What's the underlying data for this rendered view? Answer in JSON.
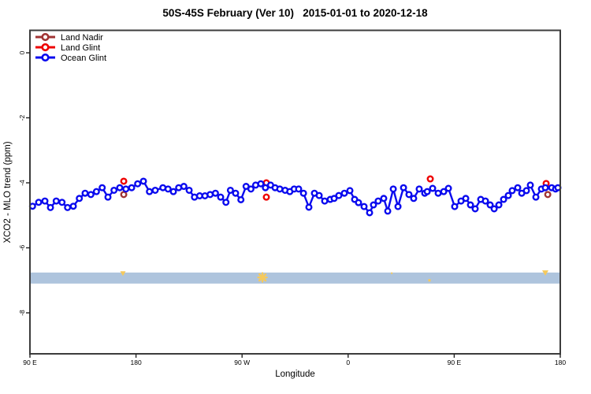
{
  "title": "50S-45S February (Ver 10)   2015-01-01 to 2020-12-18",
  "chart_data": {
    "type": "scatter",
    "title": "50S-45S February (Ver 10)   2015-01-01 to 2020-12-18",
    "xlabel": "Longitude",
    "ylabel": "XCO2 - MLO trend (ppm)",
    "x_axis_note": "longitude axis wraps eastward from 90E through 180, 90W, 0, 90E to 180; stored x = degrees east of Greenwich measured continuously from 90 to 540",
    "x_range": [
      90,
      540
    ],
    "y_range": [
      -9.25,
      0.69
    ],
    "grid": false,
    "legend_position": "top-left-inside",
    "x_ticks": [
      {
        "pos": 90,
        "label": "90 E"
      },
      {
        "pos": 180,
        "label": "180"
      },
      {
        "pos": 270,
        "label": "90 W"
      },
      {
        "pos": 360,
        "label": "0"
      },
      {
        "pos": 450,
        "label": "90 E"
      },
      {
        "pos": 540,
        "label": "180"
      }
    ],
    "y_ticks": [
      {
        "pos": 0,
        "label": "0"
      },
      {
        "pos": -2,
        "label": "-2"
      },
      {
        "pos": -4,
        "label": "-4"
      },
      {
        "pos": -6,
        "label": "-6"
      },
      {
        "pos": -8,
        "label": "-8"
      }
    ],
    "legend": [
      {
        "label": "Land Nadir",
        "color": "#A03434"
      },
      {
        "label": "Land Glint",
        "color": "#EE0000"
      },
      {
        "label": "Ocean Glint",
        "color": "#0A0AEE"
      }
    ],
    "band": {
      "color": "#AEC4DD",
      "y_top": -6.76,
      "y_bottom": -7.1,
      "label": "coverage band"
    },
    "band_marks_color": "#F5C95C",
    "band_marks": [
      {
        "x": 168.9,
        "y": -6.79,
        "shape": "caret",
        "size": 7
      },
      {
        "x": 287.3,
        "y": -6.91,
        "shape": "asterisk",
        "size": 11
      },
      {
        "x": 397.0,
        "y": -6.78,
        "shape": "dot",
        "size": 2
      },
      {
        "x": 429.0,
        "y": -7.0,
        "shape": "dot",
        "size": 3
      },
      {
        "x": 527.3,
        "y": -6.77,
        "shape": "caret",
        "size": 8
      }
    ],
    "series": [
      {
        "name": "Land Nadir",
        "color": "#A03434",
        "style": "markers",
        "points": [
          [
            169.6,
            -4.36
          ],
          [
            529.4,
            -4.36
          ]
        ]
      },
      {
        "name": "Land Glint",
        "color": "#EE0000",
        "style": "markers",
        "points": [
          [
            169.6,
            -3.95
          ],
          [
            290.6,
            -4.0
          ],
          [
            290.6,
            -4.44
          ],
          [
            429.7,
            -3.88
          ],
          [
            528.0,
            -4.02
          ]
        ]
      },
      {
        "name": "Ocean Glint",
        "color": "#0A0AEE",
        "style": "line+markers",
        "points": [
          [
            92.2,
            -4.72
          ],
          [
            97.4,
            -4.6
          ],
          [
            102.7,
            -4.56
          ],
          [
            107.4,
            -4.76
          ],
          [
            112.3,
            -4.56
          ],
          [
            117.2,
            -4.6
          ],
          [
            121.9,
            -4.76
          ],
          [
            126.8,
            -4.72
          ],
          [
            131.9,
            -4.48
          ],
          [
            136.8,
            -4.32
          ],
          [
            141.7,
            -4.36
          ],
          [
            146.4,
            -4.27
          ],
          [
            151.3,
            -4.15
          ],
          [
            156.2,
            -4.44
          ],
          [
            161.3,
            -4.23
          ],
          [
            166.2,
            -4.15
          ],
          [
            171.4,
            -4.19
          ],
          [
            176.3,
            -4.15
          ],
          [
            181.4,
            -4.03
          ],
          [
            186.3,
            -3.95
          ],
          [
            191.4,
            -4.27
          ],
          [
            196.3,
            -4.23
          ],
          [
            202.8,
            -4.15
          ],
          [
            207.2,
            -4.19
          ],
          [
            211.7,
            -4.27
          ],
          [
            216.2,
            -4.15
          ],
          [
            220.6,
            -4.11
          ],
          [
            225.1,
            -4.23
          ],
          [
            229.6,
            -4.44
          ],
          [
            234.0,
            -4.4
          ],
          [
            238.5,
            -4.4
          ],
          [
            242.9,
            -4.36
          ],
          [
            247.4,
            -4.32
          ],
          [
            251.8,
            -4.44
          ],
          [
            256.3,
            -4.6
          ],
          [
            260.1,
            -4.23
          ],
          [
            264.5,
            -4.32
          ],
          [
            269.0,
            -4.52
          ],
          [
            273.4,
            -4.11
          ],
          [
            277.5,
            -4.19
          ],
          [
            281.5,
            -4.07
          ],
          [
            285.9,
            -4.03
          ],
          [
            289.8,
            -4.15
          ],
          [
            294.2,
            -4.07
          ],
          [
            298.0,
            -4.15
          ],
          [
            302.0,
            -4.19
          ],
          [
            306.5,
            -4.23
          ],
          [
            310.5,
            -4.27
          ],
          [
            314.2,
            -4.19
          ],
          [
            318.0,
            -4.19
          ],
          [
            322.1,
            -4.32
          ],
          [
            326.7,
            -4.75
          ],
          [
            331.4,
            -4.32
          ],
          [
            335.4,
            -4.39
          ],
          [
            340.1,
            -4.56
          ],
          [
            344.8,
            -4.51
          ],
          [
            348.1,
            -4.48
          ],
          [
            352.1,
            -4.39
          ],
          [
            356.8,
            -4.32
          ],
          [
            361.5,
            -4.24
          ],
          [
            365.5,
            -4.51
          ],
          [
            368.8,
            -4.61
          ],
          [
            373.5,
            -4.73
          ],
          [
            378.2,
            -4.92
          ],
          [
            381.5,
            -4.68
          ],
          [
            385.5,
            -4.56
          ],
          [
            390.2,
            -4.48
          ],
          [
            393.6,
            -4.87
          ],
          [
            398.3,
            -4.19
          ],
          [
            402.3,
            -4.73
          ],
          [
            407.0,
            -4.15
          ],
          [
            411.6,
            -4.36
          ],
          [
            415.6,
            -4.48
          ],
          [
            420.3,
            -4.19
          ],
          [
            425.0,
            -4.32
          ],
          [
            427.1,
            -4.27
          ],
          [
            431.7,
            -4.17
          ],
          [
            436.4,
            -4.32
          ],
          [
            441.1,
            -4.27
          ],
          [
            445.1,
            -4.17
          ],
          [
            450.4,
            -4.73
          ],
          [
            455.8,
            -4.56
          ],
          [
            459.8,
            -4.48
          ],
          [
            463.8,
            -4.68
          ],
          [
            467.8,
            -4.8
          ],
          [
            472.5,
            -4.51
          ],
          [
            476.5,
            -4.56
          ],
          [
            480.5,
            -4.68
          ],
          [
            483.9,
            -4.8
          ],
          [
            487.9,
            -4.68
          ],
          [
            491.9,
            -4.51
          ],
          [
            495.9,
            -4.39
          ],
          [
            499.2,
            -4.24
          ],
          [
            503.9,
            -4.15
          ],
          [
            507.3,
            -4.32
          ],
          [
            511.3,
            -4.24
          ],
          [
            514.6,
            -4.07
          ],
          [
            519.3,
            -4.44
          ],
          [
            524.0,
            -4.19
          ],
          [
            527.3,
            -4.15
          ],
          [
            532.7,
            -4.15
          ],
          [
            536.0,
            -4.19
          ],
          [
            538.0,
            -4.15
          ]
        ]
      }
    ]
  }
}
